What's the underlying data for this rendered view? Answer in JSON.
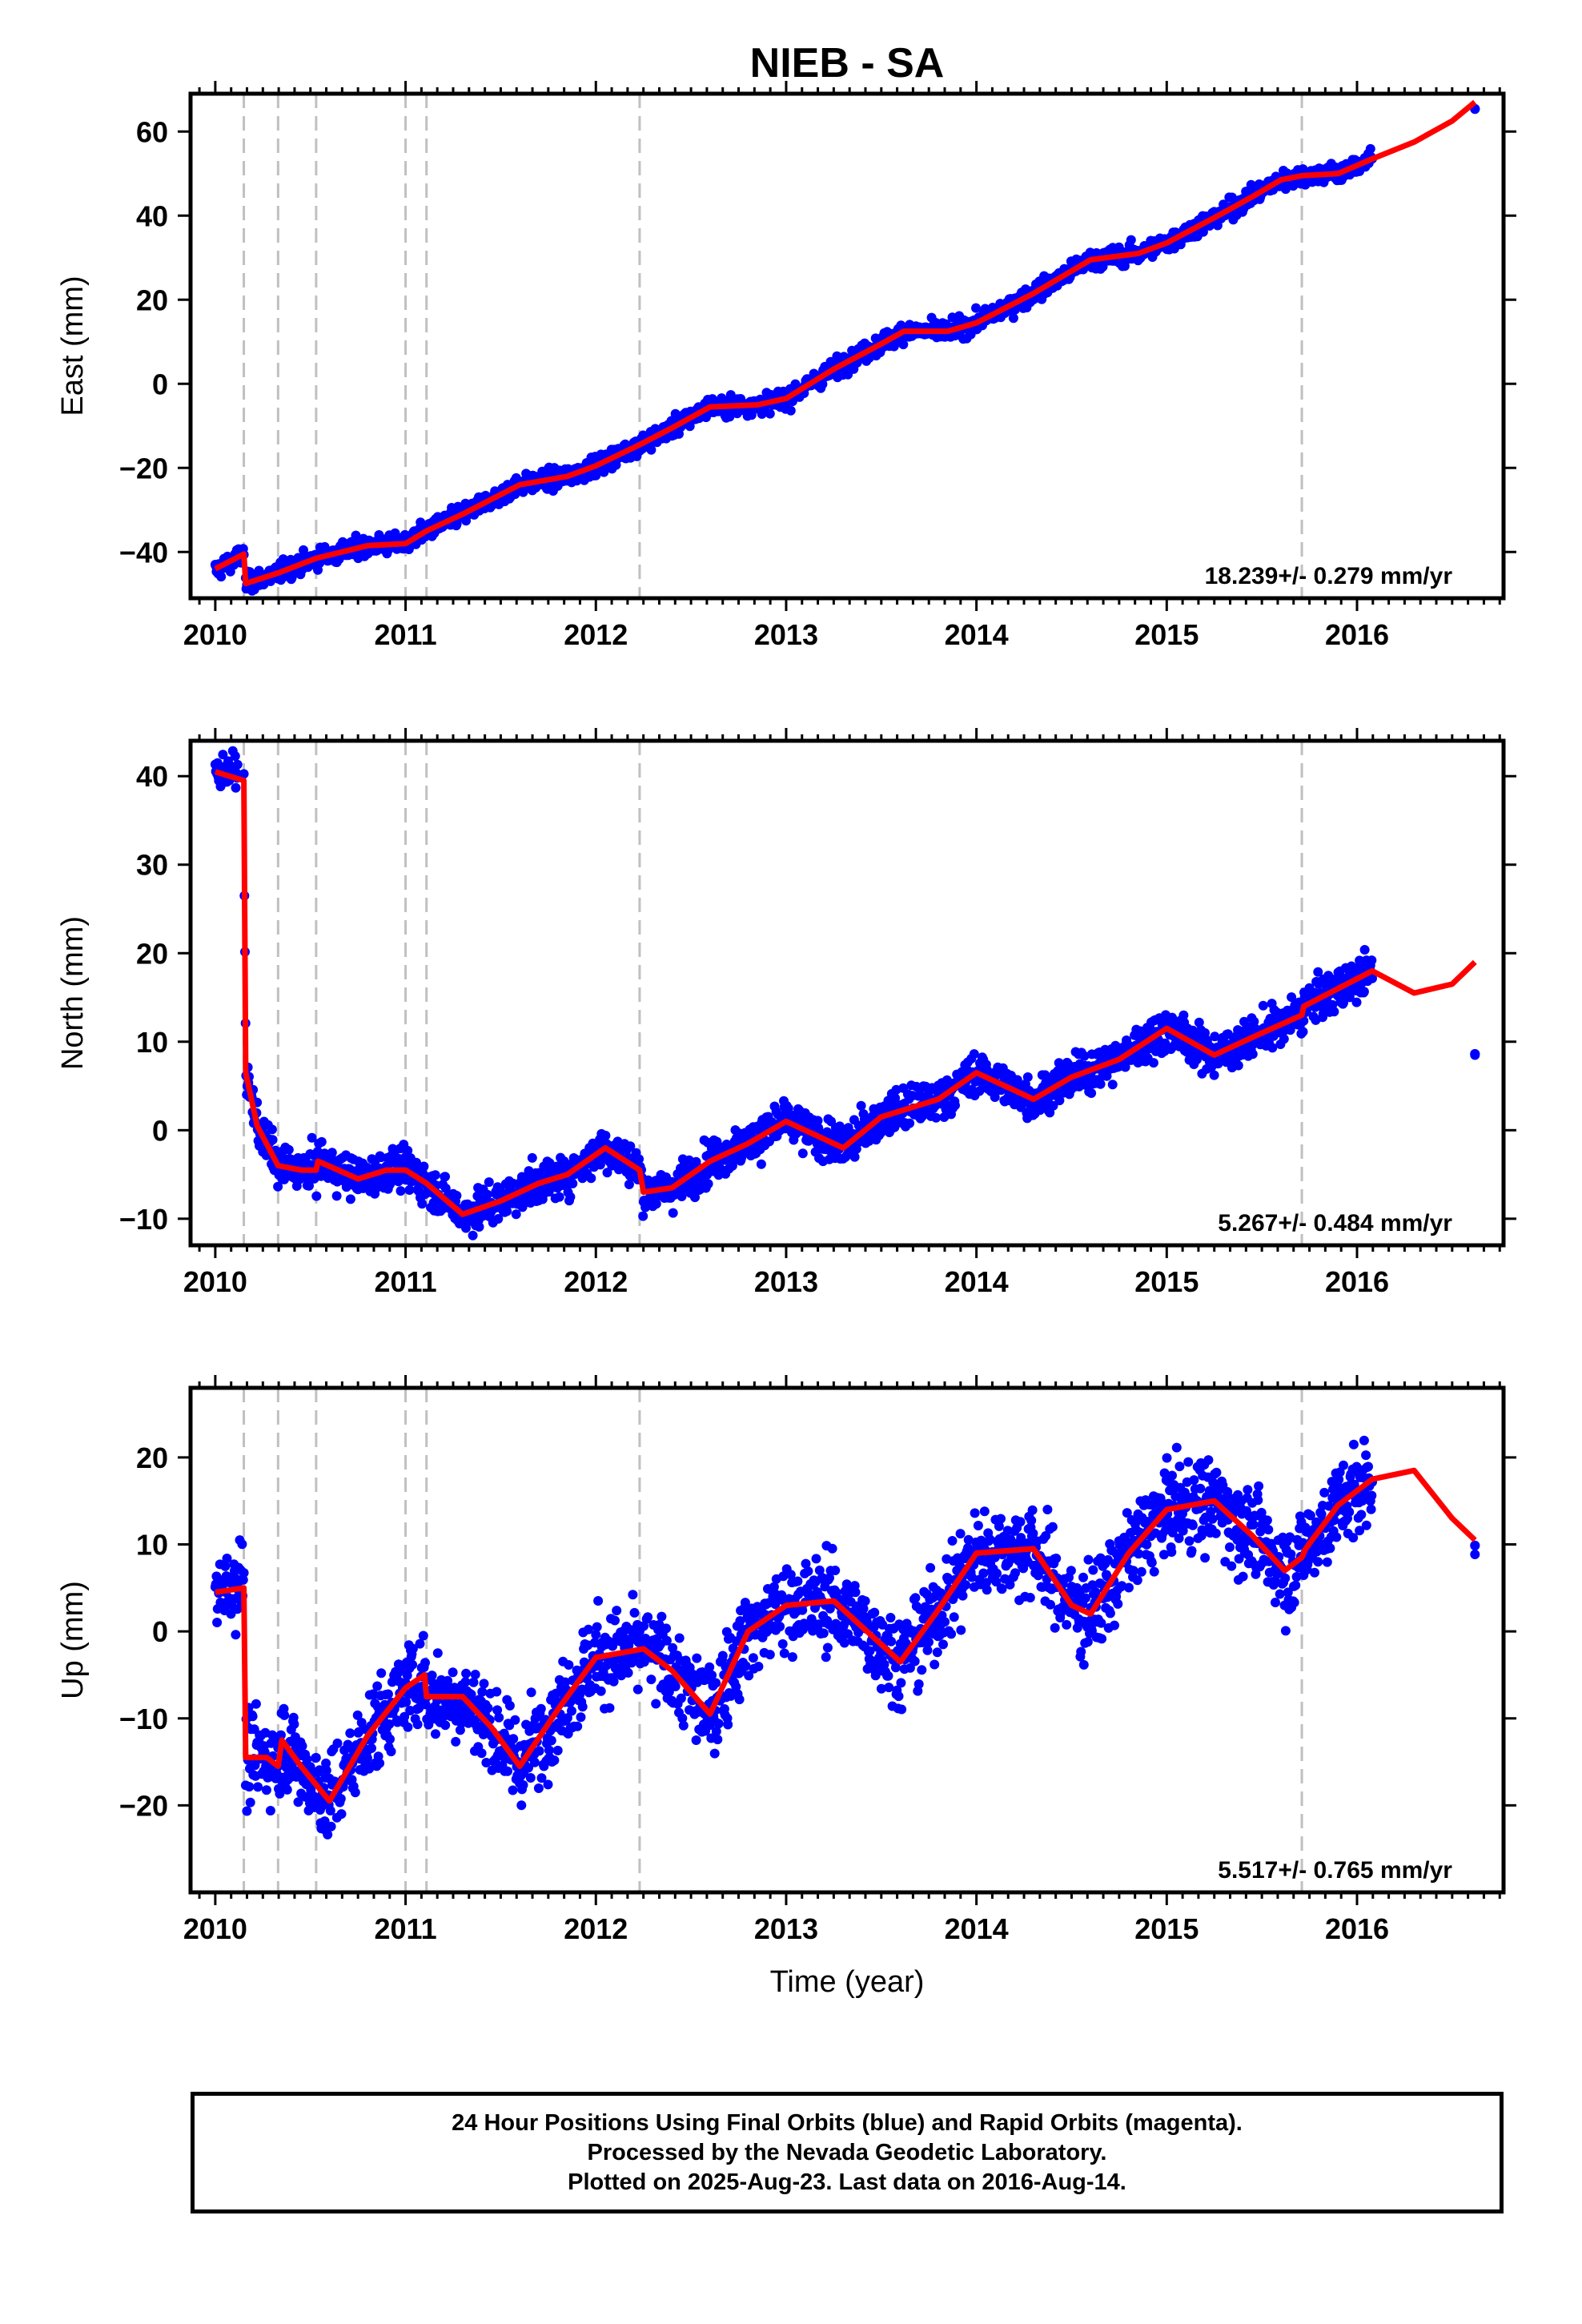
{
  "title": "NIEB - SA",
  "xlabel": "Time (year)",
  "colors": {
    "data_points": "#0000ff",
    "model_line": "#ff0000",
    "event_lines": "#c0c0c0",
    "frame": "#000000"
  },
  "footer": {
    "line1": "24 Hour Positions Using Final Orbits (blue) and Rapid Orbits (magenta).",
    "line2": "Processed by the Nevada Geodetic Laboratory.",
    "line3": "Plotted on 2025-Aug-23. Last data on 2016-Aug-14."
  },
  "chart_data": [
    {
      "type": "scatter",
      "component": "east",
      "ylabel": "East (mm)",
      "rate_label": "18.239+/- 0.279 mm/yr",
      "xlim": [
        2009.87,
        2016.77
      ],
      "ylim": [
        -51,
        69
      ],
      "xticks": [
        2010,
        2011,
        2012,
        2013,
        2014,
        2015,
        2016
      ],
      "yticks": [
        -40,
        -20,
        0,
        20,
        40,
        60
      ],
      "grid": false,
      "event_lines": [
        2010.15,
        2010.33,
        2010.53,
        2011.0,
        2011.11,
        2012.23,
        2015.71
      ],
      "series": [
        {
          "style": "points",
          "color": "#0000ff",
          "segments": [
            {
              "x": [
                2010.0,
                2010.15
              ],
              "trend_y": [
                -44.5,
                -40.5
              ],
              "spread": 1.6
            },
            {
              "x": [
                2010.16,
                2016.08
              ],
              "trend": "east",
              "spread": 1.6
            },
            {
              "x": [
                2016.62,
                2016.62
              ],
              "trend_y": [
                65.5,
                65.5
              ],
              "spread": 0.6
            }
          ]
        },
        {
          "style": "line",
          "color": "#ff0000",
          "x": [
            2010.0,
            2010.15,
            2010.16,
            2010.33,
            2010.53,
            2010.8,
            2011.0,
            2011.11,
            2011.3,
            2011.6,
            2011.85,
            2012.0,
            2012.23,
            2012.4,
            2012.6,
            2012.85,
            2013.0,
            2013.25,
            2013.5,
            2013.62,
            2013.85,
            2014.0,
            2014.3,
            2014.6,
            2014.85,
            2015.0,
            2015.25,
            2015.45,
            2015.6,
            2015.71,
            2015.9,
            2016.08,
            2016.3,
            2016.5,
            2016.62
          ],
          "y": [
            -44,
            -40.5,
            -47.5,
            -45,
            -41.5,
            -38.5,
            -38,
            -35,
            -31,
            -24,
            -22,
            -19.5,
            -14.5,
            -10.5,
            -5.5,
            -5,
            -3.5,
            3.5,
            9.5,
            12.5,
            12.5,
            14.5,
            21.5,
            29.5,
            31,
            33.5,
            39.5,
            44.5,
            48.5,
            49.5,
            50,
            53.5,
            57.5,
            62.5,
            67
          ]
        }
      ]
    },
    {
      "type": "scatter",
      "component": "north",
      "ylabel": "North (mm)",
      "rate_label": "5.267+/- 0.484 mm/yr",
      "xlim": [
        2009.87,
        2016.77
      ],
      "ylim": [
        -13,
        44
      ],
      "xticks": [
        2010,
        2011,
        2012,
        2013,
        2014,
        2015,
        2016
      ],
      "yticks": [
        -10,
        0,
        10,
        20,
        30,
        40
      ],
      "grid": false,
      "event_lines": [
        2010.15,
        2010.33,
        2010.53,
        2011.0,
        2011.11,
        2012.23,
        2015.71
      ],
      "series": [
        {
          "style": "points",
          "color": "#0000ff",
          "segments": [
            {
              "x": [
                2010.0,
                2010.12
              ],
              "trend_y": [
                40.5,
                40.5
              ],
              "spread": 1.3
            },
            {
              "x": [
                2010.15,
                2016.08
              ],
              "trend": "north",
              "spread": 1.6
            },
            {
              "x": [
                2016.62,
                2016.62
              ],
              "trend_y": [
                8.5,
                8.5
              ],
              "spread": 0.3
            }
          ]
        },
        {
          "style": "line",
          "color": "#ff0000",
          "x": [
            2010.0,
            2010.15,
            2010.16,
            2010.22,
            2010.33,
            2010.45,
            2010.53,
            2010.54,
            2010.75,
            2010.9,
            2011.0,
            2011.11,
            2011.3,
            2011.5,
            2011.7,
            2011.85,
            2012.05,
            2012.23,
            2012.25,
            2012.4,
            2012.6,
            2012.8,
            2013.0,
            2013.3,
            2013.5,
            2013.8,
            2014.0,
            2014.3,
            2014.5,
            2014.75,
            2015.0,
            2015.25,
            2015.45,
            2015.71,
            2015.72,
            2015.9,
            2016.08,
            2016.3,
            2016.5,
            2016.62
          ],
          "y": [
            40.5,
            39.5,
            6.5,
            0.5,
            -4,
            -4.5,
            -4.5,
            -3.5,
            -5.5,
            -4.5,
            -4.5,
            -6,
            -9.5,
            -8,
            -6,
            -5,
            -2,
            -4.5,
            -7,
            -6.5,
            -3.5,
            -1.5,
            1,
            -2,
            1.5,
            3.5,
            6.5,
            3.5,
            6,
            8,
            11.5,
            8.5,
            10.5,
            13,
            14,
            16,
            18,
            15.5,
            16.5,
            19
          ]
        }
      ]
    },
    {
      "type": "scatter",
      "component": "up",
      "ylabel": "Up (mm)",
      "rate_label": "5.517+/- 0.765 mm/yr",
      "xlim": [
        2009.87,
        2016.77
      ],
      "ylim": [
        -30,
        28
      ],
      "xticks": [
        2010,
        2011,
        2012,
        2013,
        2014,
        2015,
        2016
      ],
      "yticks": [
        -20,
        -10,
        0,
        10,
        20
      ],
      "grid": false,
      "event_lines": [
        2010.15,
        2010.33,
        2010.53,
        2011.0,
        2011.11,
        2012.23,
        2015.71
      ],
      "series": [
        {
          "style": "points",
          "color": "#0000ff",
          "segments": [
            {
              "x": [
                2010.0,
                2010.15
              ],
              "trend_y": [
                5,
                6
              ],
              "spread": 3.2
            },
            {
              "x": [
                2010.16,
                2016.08
              ],
              "trend": "up",
              "spread": 3.6
            },
            {
              "x": [
                2016.62,
                2016.62
              ],
              "trend_y": [
                10,
                10
              ],
              "spread": 0.8
            }
          ]
        },
        {
          "style": "line",
          "color": "#ff0000",
          "x": [
            2010.0,
            2010.15,
            2010.16,
            2010.27,
            2010.33,
            2010.35,
            2010.45,
            2010.6,
            2010.8,
            2011.0,
            2011.1,
            2011.11,
            2011.3,
            2011.45,
            2011.6,
            2011.8,
            2012.0,
            2012.25,
            2012.4,
            2012.6,
            2012.8,
            2013.0,
            2013.25,
            2013.45,
            2013.6,
            2013.8,
            2014.0,
            2014.3,
            2014.5,
            2014.6,
            2014.8,
            2015.0,
            2015.25,
            2015.45,
            2015.62,
            2015.71,
            2015.73,
            2015.9,
            2016.08,
            2016.3,
            2016.5,
            2016.62
          ],
          "y": [
            4.5,
            5,
            -14.5,
            -14.5,
            -15.5,
            -12.5,
            -15.5,
            -19.5,
            -12,
            -6.5,
            -5,
            -7.5,
            -7.5,
            -11,
            -15.5,
            -9,
            -3,
            -2,
            -4.5,
            -9.5,
            0,
            3,
            3.5,
            -0.5,
            -3.5,
            2.5,
            9,
            9.5,
            3,
            2,
            9,
            14,
            15,
            11,
            7,
            8.5,
            9.5,
            14.5,
            17.5,
            18.5,
            13,
            10.5
          ]
        }
      ]
    }
  ]
}
